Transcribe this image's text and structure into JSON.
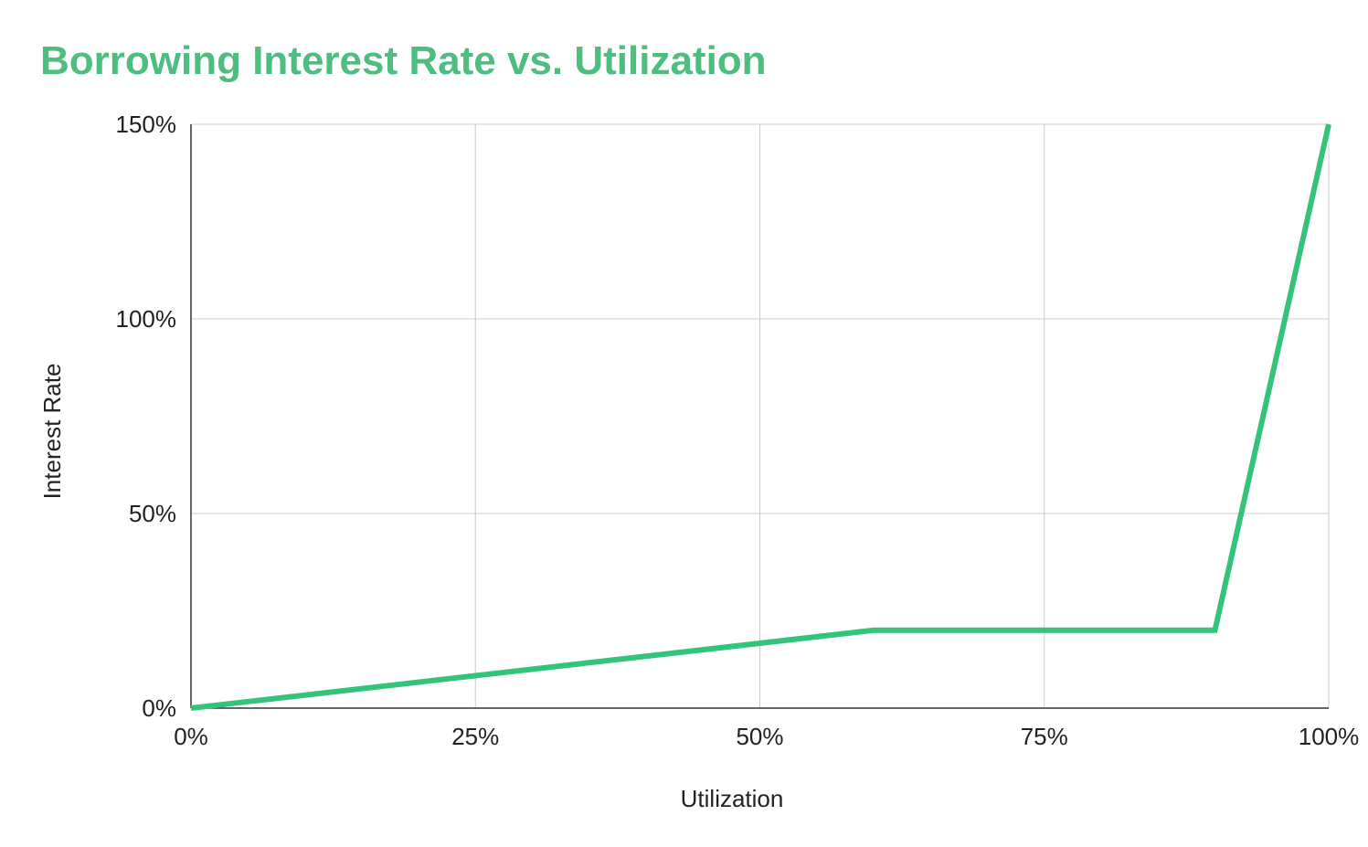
{
  "chart_data": {
    "type": "line",
    "title": "Borrowing Interest Rate vs. Utilization",
    "xlabel": "Utilization",
    "ylabel": "Interest Rate",
    "xlim": [
      0,
      100
    ],
    "ylim": [
      0,
      150
    ],
    "x_ticks": [
      0,
      25,
      50,
      75,
      100
    ],
    "x_tick_labels": [
      "0%",
      "25%",
      "50%",
      "75%",
      "100%"
    ],
    "y_ticks": [
      0,
      50,
      100,
      150
    ],
    "y_tick_labels": [
      "0%",
      "50%",
      "100%",
      "150%"
    ],
    "grid": true,
    "legend": "none",
    "series": [
      {
        "color": "#33c47a",
        "x": [
          0,
          60,
          90,
          100
        ],
        "y": [
          0,
          20,
          20,
          150
        ]
      }
    ]
  }
}
